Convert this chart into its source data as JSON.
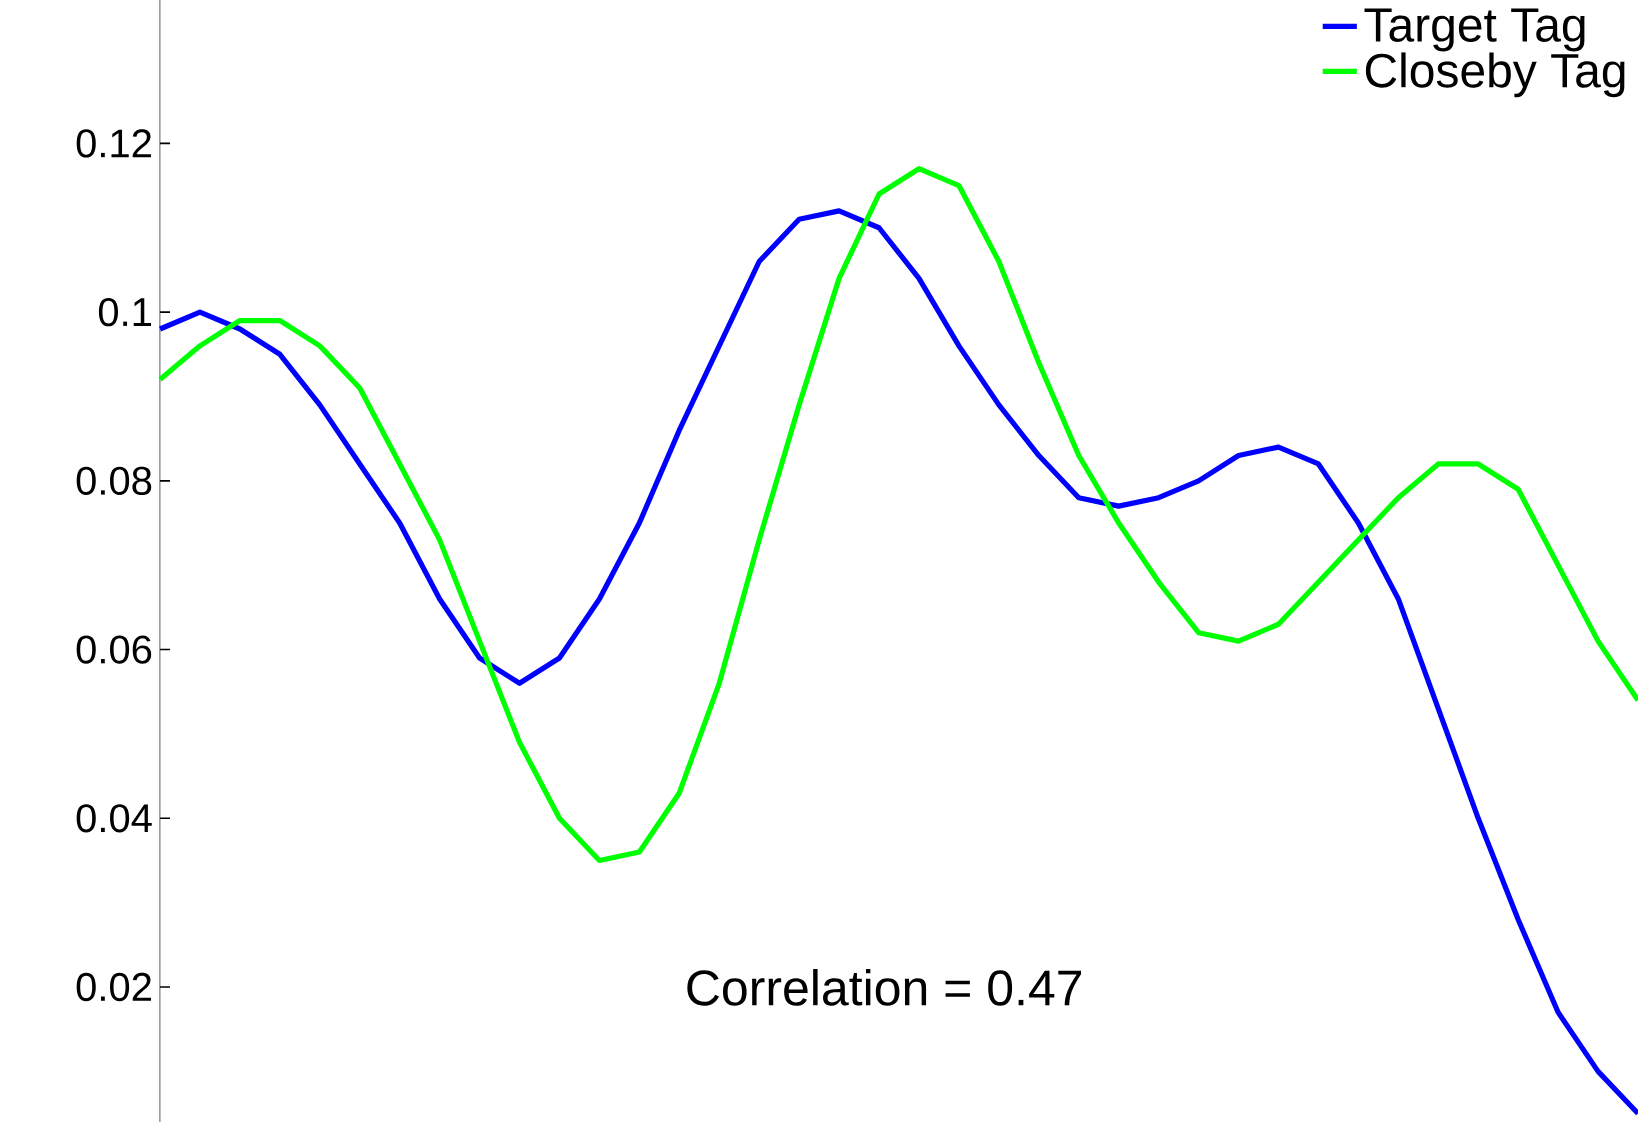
{
  "chart_data": {
    "type": "line",
    "categories": [
      null,
      null,
      null,
      null,
      null,
      null,
      null,
      null,
      null,
      null,
      null,
      null,
      null,
      null,
      null,
      null,
      null,
      null,
      null,
      null,
      null,
      null,
      null,
      null,
      null,
      null,
      null,
      null,
      null,
      null,
      null,
      null,
      null,
      null,
      null,
      null,
      null,
      null
    ],
    "series": [
      {
        "name": "Target Tag",
        "color": "#0000ff",
        "values": [
          0.098,
          0.1,
          0.098,
          0.095,
          0.089,
          0.082,
          0.075,
          0.066,
          0.059,
          0.056,
          0.059,
          0.066,
          0.075,
          0.086,
          0.096,
          0.106,
          0.111,
          0.112,
          0.11,
          0.104,
          0.096,
          0.089,
          0.083,
          0.078,
          0.077,
          0.078,
          0.08,
          0.083,
          0.084,
          0.082,
          0.075,
          0.066,
          0.053,
          0.04,
          0.028,
          0.017,
          0.01,
          0.005
        ]
      },
      {
        "name": "Closeby Tag",
        "color": "#00ff00",
        "values": [
          0.092,
          0.096,
          0.099,
          0.099,
          0.096,
          0.091,
          0.082,
          0.073,
          0.061,
          0.049,
          0.04,
          0.035,
          0.036,
          0.043,
          0.056,
          0.073,
          0.089,
          0.104,
          0.114,
          0.117,
          0.115,
          0.106,
          0.094,
          0.083,
          0.075,
          0.068,
          0.062,
          0.061,
          0.063,
          0.068,
          0.073,
          0.078,
          0.082,
          0.082,
          0.079,
          0.07,
          0.061,
          0.054
        ]
      }
    ],
    "ylim": [
      0.004,
      0.137
    ],
    "yticks": [
      0.02,
      0.04,
      0.06,
      0.08,
      0.1,
      0.12
    ],
    "legend": "top right",
    "marker": "none",
    "grid": false,
    "annotations": [
      "Correlation = 0.47"
    ]
  }
}
